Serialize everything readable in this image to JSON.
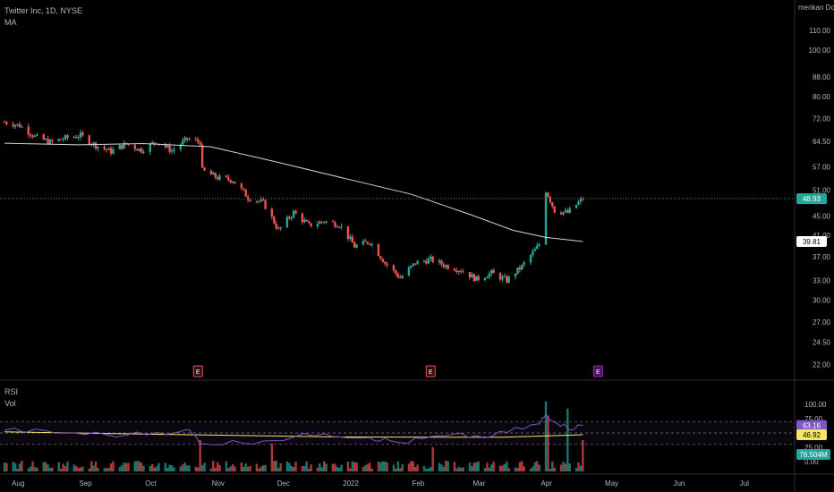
{
  "header": {
    "symbol_line": "Twitter Inc, 1D, NYSE",
    "indicator": "MA",
    "currency": "merikan Dola"
  },
  "lower_pane": {
    "rsi_label": "RSI",
    "vol_label": "Vol"
  },
  "colors": {
    "up": "#26a69a",
    "down": "#ef5350",
    "ma": "#d1d4dc",
    "rsi": "#7e57c2",
    "rsi_ma": "#f5e663",
    "earnings": "#ef5350",
    "earnings_upcoming": "#9c27b0"
  },
  "chart_data": {
    "type": "candlestick",
    "title": "Twitter Inc, 1D, NYSE",
    "price_axis": {
      "ticks": [
        "110.00",
        "100.00",
        "88.00",
        "80.00",
        "72.00",
        "64.50",
        "57.00",
        "51.00",
        "45.00",
        "41.00",
        "37.00",
        "33.00",
        "30.00",
        "27.00",
        "24.50",
        "22.00"
      ],
      "scale": "log",
      "range": [
        20.5,
        122
      ]
    },
    "time_axis": {
      "labels": [
        "Aug",
        "Sep",
        "Oct",
        "Nov",
        "Dec",
        "2022",
        "Feb",
        "Mar",
        "Apr",
        "May",
        "Jun",
        "Jul"
      ]
    },
    "last_price": "48.93",
    "ma_value": "39.81",
    "close_path": [
      {
        "date": "2021-07-29",
        "close": 70.8
      },
      {
        "date": "2021-08-05",
        "close": 69.6
      },
      {
        "date": "2021-08-12",
        "close": 66.0
      },
      {
        "date": "2021-08-19",
        "close": 64.2
      },
      {
        "date": "2021-08-26",
        "close": 65.5
      },
      {
        "date": "2021-09-02",
        "close": 66.3
      },
      {
        "date": "2021-09-09",
        "close": 63.2
      },
      {
        "date": "2021-09-16",
        "close": 61.4
      },
      {
        "date": "2021-09-23",
        "close": 63.7
      },
      {
        "date": "2021-09-30",
        "close": 61.8
      },
      {
        "date": "2021-10-07",
        "close": 64.5
      },
      {
        "date": "2021-10-14",
        "close": 61.6
      },
      {
        "date": "2021-10-21",
        "close": 65.2
      },
      {
        "date": "2021-10-27",
        "close": 64.3
      },
      {
        "date": "2021-10-28",
        "close": 56.0
      },
      {
        "date": "2021-11-04",
        "close": 54.1
      },
      {
        "date": "2021-11-11",
        "close": 53.5
      },
      {
        "date": "2021-11-18",
        "close": 49.2
      },
      {
        "date": "2021-11-25",
        "close": 48.0
      },
      {
        "date": "2021-12-02",
        "close": 42.0
      },
      {
        "date": "2021-12-09",
        "close": 45.8
      },
      {
        "date": "2021-12-16",
        "close": 43.0
      },
      {
        "date": "2021-12-23",
        "close": 43.9
      },
      {
        "date": "2021-12-30",
        "close": 43.2
      },
      {
        "date": "2022-01-06",
        "close": 38.9
      },
      {
        "date": "2022-01-13",
        "close": 39.8
      },
      {
        "date": "2022-01-20",
        "close": 35.9
      },
      {
        "date": "2022-01-27",
        "close": 33.4
      },
      {
        "date": "2022-02-03",
        "close": 35.9
      },
      {
        "date": "2022-02-10",
        "close": 36.5
      },
      {
        "date": "2022-02-17",
        "close": 35.4
      },
      {
        "date": "2022-02-24",
        "close": 34.7
      },
      {
        "date": "2022-03-03",
        "close": 33.2
      },
      {
        "date": "2022-03-10",
        "close": 34.2
      },
      {
        "date": "2022-03-17",
        "close": 33.0
      },
      {
        "date": "2022-03-24",
        "close": 35.3
      },
      {
        "date": "2022-03-31",
        "close": 38.7
      },
      {
        "date": "2022-04-01",
        "close": 39.3
      },
      {
        "date": "2022-04-04",
        "close": 50.9
      },
      {
        "date": "2022-04-08",
        "close": 46.2
      },
      {
        "date": "2022-04-14",
        "close": 45.7
      },
      {
        "date": "2022-04-21",
        "close": 48.93
      }
    ],
    "moving_average": [
      {
        "date": "2021-07-29",
        "value": 63.9
      },
      {
        "date": "2021-09-01",
        "value": 63.4
      },
      {
        "date": "2021-10-01",
        "value": 63.8
      },
      {
        "date": "2021-11-01",
        "value": 62.8
      },
      {
        "date": "2021-12-01",
        "value": 58.4
      },
      {
        "date": "2022-01-01",
        "value": 54.0
      },
      {
        "date": "2022-02-01",
        "value": 50.0
      },
      {
        "date": "2022-03-01",
        "value": 45.2
      },
      {
        "date": "2022-03-20",
        "value": 42.0
      },
      {
        "date": "2022-04-04",
        "value": 40.6
      },
      {
        "date": "2022-04-21",
        "value": 39.81
      }
    ],
    "earnings_markers": [
      {
        "date": "2021-10-26",
        "label": "E",
        "upcoming": false
      },
      {
        "date": "2022-02-10",
        "label": "E",
        "upcoming": false
      },
      {
        "date": "2022-04-28",
        "label": "E",
        "upcoming": true
      }
    ],
    "rsi": {
      "axis_ticks": [
        "100.00",
        "75.00",
        "50.00",
        "25.00",
        "0.00"
      ],
      "value": "63.16",
      "ma_value": "46.92",
      "bands": [
        30,
        70
      ],
      "path": [
        {
          "date": "2021-07-29",
          "value": 55
        },
        {
          "date": "2021-08-26",
          "value": 50
        },
        {
          "date": "2021-09-23",
          "value": 46
        },
        {
          "date": "2021-10-21",
          "value": 56
        },
        {
          "date": "2021-10-28",
          "value": 31
        },
        {
          "date": "2021-11-25",
          "value": 36
        },
        {
          "date": "2021-12-23",
          "value": 49
        },
        {
          "date": "2022-01-13",
          "value": 42
        },
        {
          "date": "2022-01-27",
          "value": 33
        },
        {
          "date": "2022-02-17",
          "value": 45
        },
        {
          "date": "2022-03-10",
          "value": 44
        },
        {
          "date": "2022-04-01",
          "value": 66
        },
        {
          "date": "2022-04-04",
          "value": 82
        },
        {
          "date": "2022-04-14",
          "value": 58
        },
        {
          "date": "2022-04-21",
          "value": 63.16
        }
      ],
      "ma_path": [
        {
          "date": "2021-07-29",
          "value": 52
        },
        {
          "date": "2021-10-01",
          "value": 48
        },
        {
          "date": "2022-01-01",
          "value": 43
        },
        {
          "date": "2022-03-15",
          "value": 42.5
        },
        {
          "date": "2022-04-21",
          "value": 46.92
        }
      ]
    },
    "volume": {
      "last": "76.504M",
      "spikes": [
        {
          "date": "2021-10-27",
          "height": 0.45
        },
        {
          "date": "2021-11-29",
          "height": 0.4
        },
        {
          "date": "2022-02-11",
          "height": 0.35
        },
        {
          "date": "2022-04-04",
          "height": 1.0
        },
        {
          "date": "2022-04-05",
          "height": 0.8
        },
        {
          "date": "2022-04-14",
          "height": 0.9
        },
        {
          "date": "2022-04-21",
          "height": 0.45
        }
      ]
    }
  }
}
